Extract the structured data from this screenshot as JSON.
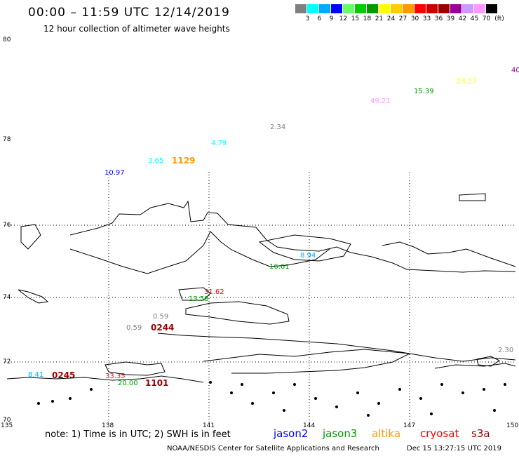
{
  "header": {
    "title": "00:00 – 11:59 UTC 12/14/2019",
    "subtitle": "12 hour collection of altimeter wave heights"
  },
  "color_scale": {
    "unit": "(ft)",
    "colors": [
      "#7f7f7f",
      "#00ffff",
      "#00aaff",
      "#0000ff",
      "#66ff66",
      "#00cc00",
      "#009900",
      "#ffff00",
      "#ffcc00",
      "#ff9900",
      "#ff0000",
      "#cc0000",
      "#990000",
      "#990099",
      "#cc99ff",
      "#ff99ff",
      "#000000"
    ],
    "labels": [
      "3",
      "6",
      "9",
      "12",
      "15",
      "18",
      "21",
      "24",
      "27",
      "30",
      "33",
      "36",
      "39",
      "42",
      "45",
      "70"
    ]
  },
  "axes": {
    "lat_labels": [
      "80",
      "78",
      "76",
      "74",
      "72",
      "70"
    ],
    "lon_labels": [
      "135",
      "138",
      "141",
      "144",
      "147",
      "150"
    ]
  },
  "wave_heights": [
    {
      "text": "40",
      "color": "#990099"
    },
    {
      "text": "23.27",
      "color": "#ffff00"
    },
    {
      "text": "15.39",
      "color": "#009900"
    },
    {
      "text": "49.21",
      "color": "#ff99ff"
    },
    {
      "text": "2.34",
      "color": "#7f7f7f"
    },
    {
      "text": "4.79",
      "color": "#00ffff"
    },
    {
      "text": "3.65",
      "color": "#00ffff"
    },
    {
      "text": "10.97",
      "color": "#0000ff"
    },
    {
      "text": "8.94",
      "color": "#00aaff"
    },
    {
      "text": "16.61",
      "color": "#009900"
    },
    {
      "text": "31.62",
      "color": "#ff0000"
    },
    {
      "text": "13.58",
      "color": "#009900"
    },
    {
      "text": "0.59",
      "color": "#7f7f7f"
    },
    {
      "text": "0.59",
      "color": "#7f7f7f"
    },
    {
      "text": "2.30",
      "color": "#7f7f7f"
    },
    {
      "text": "8.41",
      "color": "#00aaff"
    },
    {
      "text": "33.35",
      "color": "#ff0000"
    },
    {
      "text": "20.00",
      "color": "#009900"
    }
  ],
  "pass_times": [
    {
      "text": "1129",
      "color": "#ff9900"
    },
    {
      "text": "0244",
      "color": "#990000"
    },
    {
      "text": "0245",
      "color": "#990000"
    },
    {
      "text": "1101",
      "color": "#990000"
    }
  ],
  "footer": {
    "note": "note: 1) Time is in UTC; 2) SWH is in feet",
    "credit": "NOAA/NESDIS Center for Satellite Applications and Research",
    "timestamp": "Dec 15 13:27:15 UTC 2019",
    "satellites": [
      {
        "name": "jason2",
        "color": "#0000ff"
      },
      {
        "name": "jason3",
        "color": "#009900"
      },
      {
        "name": "altika",
        "color": "#ff9900"
      },
      {
        "name": "cryosat",
        "color": "#ff0000"
      },
      {
        "name": "s3a",
        "color": "#990000"
      }
    ]
  }
}
